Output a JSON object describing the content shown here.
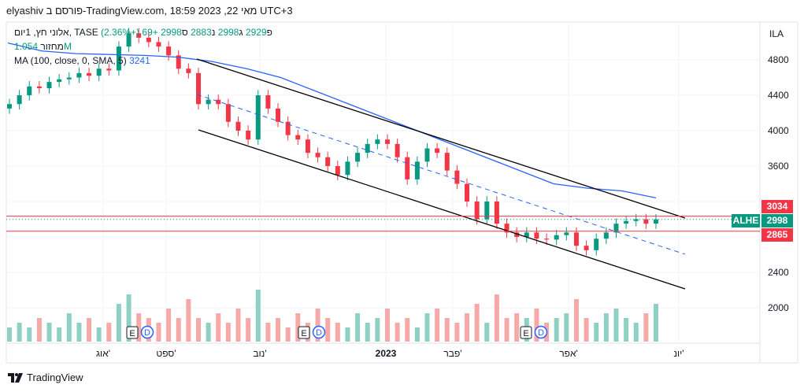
{
  "header": {
    "title": "elyashiv פורסם ב-TradingView.com, 18:59 2023 ,22 מאי UTC+3"
  },
  "legend": {
    "symbol": "אלוני חץ, 1יום, TASE",
    "open_label": "פ",
    "open": "2929",
    "high_label": "ג",
    "high": "2998",
    "low_label": "נ",
    "low": "2883",
    "close_label": "ס",
    "close": "2998",
    "change": "+69 (+2.36%)",
    "volume_label": "מחזור",
    "volume": "1.054M",
    "ma_label": "MA (100, close, 0, SMA, 5)",
    "ma_value": "3241"
  },
  "price_axis": {
    "currency": "ILA",
    "ticks": [
      "4800",
      "4400",
      "4000",
      "3600",
      "2400",
      "2000"
    ],
    "symbol_tag": "ALHE",
    "last_price": "2998",
    "upper_level": "3034",
    "lower_level": "2865"
  },
  "colors": {
    "up": "#089981",
    "down": "#f23645",
    "ma": "#2962ff",
    "volume_up": "#8fd0c4",
    "volume_down": "#f7a9a7"
  },
  "events": [
    {
      "e": "E",
      "d": "D"
    },
    {
      "e": "E",
      "d": "D"
    },
    {
      "e": "E",
      "d": "D"
    }
  ],
  "footer": {
    "brand": "TradingView"
  },
  "chart_data": {
    "type": "candlestick",
    "x_ticks": [
      "אוג'",
      "ספט'",
      "נוב'",
      "2023",
      "פבר'",
      "אפר'",
      "יונ'"
    ],
    "y_ticks": [
      4800,
      4400,
      4000,
      3600,
      2400,
      2000
    ],
    "close_path": [
      4300,
      4400,
      4500,
      4480,
      4550,
      4580,
      4600,
      4650,
      4620,
      4700,
      4680,
      4950,
      5100,
      5050,
      5000,
      4950,
      4850,
      4700,
      4650,
      4300,
      4350,
      4300,
      4100,
      4000,
      3900,
      4400,
      4250,
      4100,
      3950,
      3900,
      3750,
      3700,
      3600,
      3500,
      3650,
      3750,
      3850,
      3900,
      3850,
      3700,
      3450,
      3650,
      3800,
      3750,
      3550,
      3400,
      3200,
      3000,
      3200,
      2950,
      2850,
      2800,
      2850,
      2780,
      2770,
      2820,
      2850,
      2700,
      2650,
      2780,
      2850,
      2950,
      2980,
      3000,
      2950,
      2998
    ],
    "volume_relative": [
      3,
      4,
      3,
      5,
      4,
      3,
      6,
      4,
      5,
      3,
      4,
      8,
      10,
      6,
      5,
      4,
      7,
      5,
      9,
      5,
      4,
      6,
      4,
      7,
      5,
      11,
      4,
      5,
      3,
      6,
      4,
      7,
      5,
      4,
      3,
      6,
      4,
      5,
      7,
      4,
      5,
      3,
      6,
      7,
      5,
      4,
      6,
      8,
      4,
      10,
      5,
      6,
      5,
      7,
      4,
      5,
      6,
      9,
      5,
      4,
      6,
      7,
      5,
      4,
      6,
      8
    ],
    "ma_100_path": [
      4990,
      4900,
      4870,
      4860,
      4850,
      4830,
      4780,
      4700,
      4600,
      4450,
      4300,
      4150,
      4000,
      3850,
      3700,
      3550,
      3400,
      3350,
      3320,
      3241
    ],
    "channel": "descending parallel channel with dashed median",
    "horizontal_levels": [
      3034,
      2865
    ]
  }
}
